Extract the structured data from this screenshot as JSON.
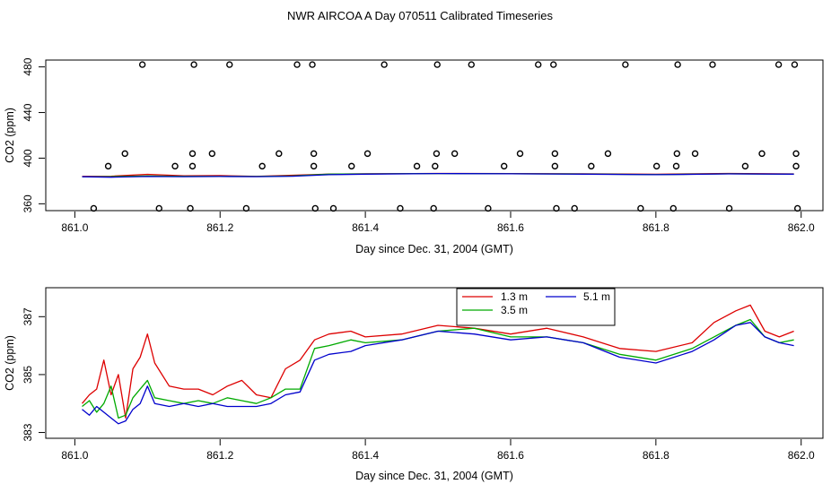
{
  "title": "NWR AIRCOA A  Day 070511  Calibrated Timeseries",
  "chart_data": [
    {
      "type": "line",
      "xlabel": "Day since Dec. 31, 2004 (GMT)",
      "ylabel": "CO2 (ppm)",
      "xlim": [
        860.96,
        862.03
      ],
      "ylim": [
        354,
        486
      ],
      "xticks": [
        861.0,
        861.2,
        861.4,
        861.6,
        861.8,
        862.0
      ],
      "xtick_labels": [
        "861.0",
        "861.2",
        "861.4",
        "861.6",
        "861.8",
        "862.0"
      ],
      "yticks": [
        360,
        400,
        440,
        480
      ],
      "ytick_labels": [
        "360",
        "400",
        "440",
        "480"
      ],
      "series": [
        {
          "name": "1.3 m",
          "color": "#dd0000",
          "x": [
            861.01,
            861.05,
            861.1,
            861.15,
            861.2,
            861.25,
            861.3,
            861.35,
            861.4,
            861.5,
            861.6,
            861.7,
            861.8,
            861.9,
            861.99
          ],
          "y": [
            384.0,
            384.2,
            385.8,
            384.6,
            384.7,
            384.0,
            385.0,
            386.0,
            386.3,
            386.6,
            386.5,
            386.3,
            385.9,
            386.6,
            386.2
          ]
        },
        {
          "name": "3.5 m",
          "color": "#00aa00",
          "x": [
            861.01,
            861.05,
            861.1,
            861.15,
            861.2,
            861.25,
            861.3,
            861.35,
            861.4,
            861.5,
            861.6,
            861.7,
            861.8,
            861.9,
            861.99
          ],
          "y": [
            383.8,
            383.8,
            384.4,
            384.0,
            384.0,
            383.9,
            384.4,
            386.0,
            386.2,
            386.5,
            386.3,
            386.1,
            385.6,
            386.3,
            386.0
          ]
        },
        {
          "name": "5.1 m",
          "color": "#0000cc",
          "x": [
            861.01,
            861.05,
            861.1,
            861.15,
            861.2,
            861.25,
            861.3,
            861.35,
            861.4,
            861.5,
            861.6,
            861.7,
            861.8,
            861.9,
            861.99
          ],
          "y": [
            383.7,
            383.3,
            383.9,
            383.8,
            383.9,
            383.8,
            384.2,
            385.5,
            386.0,
            386.5,
            386.3,
            386.0,
            385.5,
            386.2,
            386.0
          ]
        }
      ],
      "flag_points": [
        {
          "x": 861.026,
          "y": 356
        },
        {
          "x": 861.046,
          "y": 393
        },
        {
          "x": 861.069,
          "y": 404
        },
        {
          "x": 861.093,
          "y": 482
        },
        {
          "x": 861.116,
          "y": 356
        },
        {
          "x": 861.138,
          "y": 393
        },
        {
          "x": 861.159,
          "y": 356
        },
        {
          "x": 861.162,
          "y": 393
        },
        {
          "x": 861.162,
          "y": 404
        },
        {
          "x": 861.164,
          "y": 482
        },
        {
          "x": 861.189,
          "y": 404
        },
        {
          "x": 861.213,
          "y": 482
        },
        {
          "x": 861.236,
          "y": 356
        },
        {
          "x": 861.258,
          "y": 393
        },
        {
          "x": 861.281,
          "y": 404
        },
        {
          "x": 861.306,
          "y": 482
        },
        {
          "x": 861.327,
          "y": 482
        },
        {
          "x": 861.329,
          "y": 404
        },
        {
          "x": 861.329,
          "y": 393
        },
        {
          "x": 861.331,
          "y": 356
        },
        {
          "x": 861.356,
          "y": 356
        },
        {
          "x": 861.381,
          "y": 393
        },
        {
          "x": 861.403,
          "y": 404
        },
        {
          "x": 861.426,
          "y": 482
        },
        {
          "x": 861.448,
          "y": 356
        },
        {
          "x": 861.471,
          "y": 393
        },
        {
          "x": 861.494,
          "y": 356
        },
        {
          "x": 861.496,
          "y": 393
        },
        {
          "x": 861.498,
          "y": 404
        },
        {
          "x": 861.499,
          "y": 482
        },
        {
          "x": 861.523,
          "y": 404
        },
        {
          "x": 861.546,
          "y": 482
        },
        {
          "x": 861.569,
          "y": 356
        },
        {
          "x": 861.591,
          "y": 393
        },
        {
          "x": 861.613,
          "y": 404
        },
        {
          "x": 861.638,
          "y": 482
        },
        {
          "x": 861.659,
          "y": 482
        },
        {
          "x": 861.661,
          "y": 404
        },
        {
          "x": 861.661,
          "y": 393
        },
        {
          "x": 861.663,
          "y": 356
        },
        {
          "x": 861.688,
          "y": 356
        },
        {
          "x": 861.711,
          "y": 393
        },
        {
          "x": 861.734,
          "y": 404
        },
        {
          "x": 861.758,
          "y": 482
        },
        {
          "x": 861.779,
          "y": 356
        },
        {
          "x": 861.801,
          "y": 393
        },
        {
          "x": 861.824,
          "y": 356
        },
        {
          "x": 861.828,
          "y": 393
        },
        {
          "x": 861.829,
          "y": 404
        },
        {
          "x": 861.83,
          "y": 482
        },
        {
          "x": 861.854,
          "y": 404
        },
        {
          "x": 861.878,
          "y": 482
        },
        {
          "x": 861.901,
          "y": 356
        },
        {
          "x": 861.923,
          "y": 393
        },
        {
          "x": 861.946,
          "y": 404
        },
        {
          "x": 861.969,
          "y": 482
        },
        {
          "x": 861.991,
          "y": 482
        },
        {
          "x": 861.993,
          "y": 404
        },
        {
          "x": 861.993,
          "y": 393
        },
        {
          "x": 861.995,
          "y": 356
        }
      ]
    },
    {
      "type": "line",
      "xlabel": "Day since Dec. 31, 2004 (GMT)",
      "ylabel": "CO2 (ppm)",
      "xlim": [
        860.96,
        862.03
      ],
      "ylim": [
        382.8,
        388.0
      ],
      "xticks": [
        861.0,
        861.2,
        861.4,
        861.6,
        861.8,
        862.0
      ],
      "xtick_labels": [
        "861.0",
        "861.2",
        "861.4",
        "861.6",
        "861.8",
        "862.0"
      ],
      "yticks": [
        383,
        385,
        387
      ],
      "ytick_labels": [
        "383",
        "385",
        "387"
      ],
      "legend": {
        "location": "top-center",
        "entries": [
          "1.3 m",
          "3.5 m",
          "5.1 m"
        ]
      },
      "series": [
        {
          "name": "1.3 m",
          "color": "#dd0000",
          "x": [
            861.01,
            861.02,
            861.03,
            861.04,
            861.05,
            861.06,
            861.07,
            861.08,
            861.09,
            861.1,
            861.11,
            861.13,
            861.15,
            861.17,
            861.19,
            861.21,
            861.23,
            861.25,
            861.27,
            861.29,
            861.31,
            861.33,
            861.35,
            861.38,
            861.4,
            861.45,
            861.5,
            861.55,
            861.6,
            861.65,
            861.7,
            861.75,
            861.8,
            861.85,
            861.88,
            861.91,
            861.93,
            861.95,
            861.97,
            861.99
          ],
          "y": [
            384.0,
            384.3,
            384.5,
            385.5,
            384.3,
            385.0,
            383.5,
            385.2,
            385.6,
            386.4,
            385.4,
            384.6,
            384.5,
            384.5,
            384.3,
            384.6,
            384.8,
            384.3,
            384.2,
            385.2,
            385.5,
            386.2,
            386.4,
            386.5,
            386.3,
            386.4,
            386.7,
            386.6,
            386.4,
            386.6,
            386.3,
            385.9,
            385.8,
            386.1,
            386.8,
            387.2,
            387.4,
            386.5,
            386.3,
            386.5
          ]
        },
        {
          "name": "3.5 m",
          "color": "#00aa00",
          "x": [
            861.01,
            861.02,
            861.03,
            861.04,
            861.05,
            861.06,
            861.07,
            861.08,
            861.09,
            861.1,
            861.11,
            861.13,
            861.15,
            861.17,
            861.19,
            861.21,
            861.23,
            861.25,
            861.27,
            861.29,
            861.31,
            861.33,
            861.35,
            861.38,
            861.4,
            861.45,
            861.5,
            861.55,
            861.6,
            861.65,
            861.7,
            861.75,
            861.8,
            861.85,
            861.88,
            861.91,
            861.93,
            861.95,
            861.97,
            861.99
          ],
          "y": [
            383.9,
            384.1,
            383.7,
            384.0,
            384.6,
            383.5,
            383.6,
            384.2,
            384.5,
            384.8,
            384.2,
            384.1,
            384.0,
            384.1,
            384.0,
            384.2,
            384.1,
            384.0,
            384.2,
            384.5,
            384.5,
            385.9,
            386.0,
            386.2,
            386.1,
            386.2,
            386.5,
            386.6,
            386.3,
            386.3,
            386.1,
            385.7,
            385.5,
            385.9,
            386.3,
            386.7,
            386.9,
            386.3,
            386.1,
            386.2
          ]
        },
        {
          "name": "5.1 m",
          "color": "#0000cc",
          "x": [
            861.01,
            861.02,
            861.03,
            861.04,
            861.05,
            861.06,
            861.07,
            861.08,
            861.09,
            861.1,
            861.11,
            861.13,
            861.15,
            861.17,
            861.19,
            861.21,
            861.23,
            861.25,
            861.27,
            861.29,
            861.31,
            861.33,
            861.35,
            861.38,
            861.4,
            861.45,
            861.5,
            861.55,
            861.6,
            861.65,
            861.7,
            861.75,
            861.8,
            861.85,
            861.88,
            861.91,
            861.93,
            861.95,
            861.97,
            861.99
          ],
          "y": [
            383.8,
            383.6,
            383.9,
            383.7,
            383.5,
            383.3,
            383.4,
            383.8,
            384.0,
            384.6,
            384.0,
            383.9,
            384.0,
            383.9,
            384.0,
            383.9,
            383.9,
            383.9,
            384.0,
            384.3,
            384.4,
            385.5,
            385.7,
            385.8,
            386.0,
            386.2,
            386.5,
            386.4,
            386.2,
            386.3,
            386.1,
            385.6,
            385.4,
            385.8,
            386.2,
            386.7,
            386.8,
            386.3,
            386.1,
            386.0
          ]
        }
      ]
    }
  ]
}
